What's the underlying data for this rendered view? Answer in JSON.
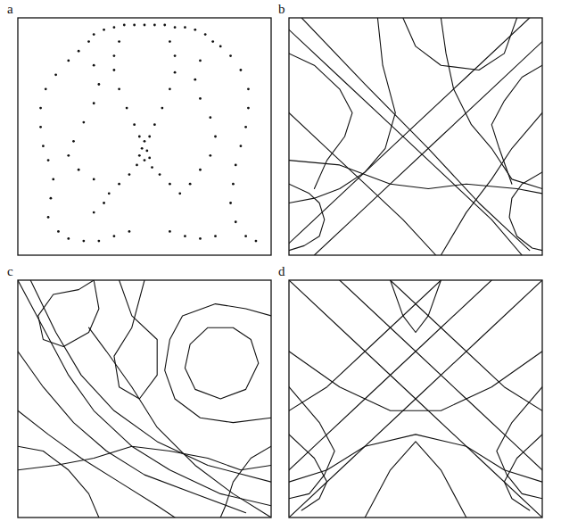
{
  "chart_data": [
    {
      "type": "scatter",
      "title": "a",
      "xlim": [
        0,
        100
      ],
      "ylim": [
        0,
        100
      ],
      "tick_labels": false,
      "color": "#111111",
      "marker": "dot",
      "x": [
        30,
        34,
        38,
        42,
        46,
        50,
        54,
        58,
        62,
        66,
        70,
        74,
        77,
        40,
        38,
        38,
        40,
        43,
        46,
        48,
        60,
        62,
        62,
        60,
        57,
        54,
        52,
        50,
        49,
        51,
        48,
        52,
        50,
        47,
        53,
        44,
        40,
        36,
        56,
        60,
        64,
        28,
        24,
        20,
        15,
        11,
        9,
        9,
        10,
        12,
        14,
        13,
        12,
        16,
        20,
        26,
        32,
        38,
        44,
        34,
        30,
        30,
        32,
        30,
        26,
        22,
        20,
        24,
        30,
        80,
        84,
        88,
        91,
        91,
        90,
        88,
        86,
        85,
        84,
        86,
        90,
        94,
        78,
        72,
        66,
        60,
        72,
        70,
        72,
        76,
        78,
        76,
        72,
        68
      ],
      "values": [
        93,
        95,
        96,
        97,
        97,
        97,
        97,
        97,
        96,
        96,
        95,
        93,
        90,
        90,
        84,
        78,
        70,
        62,
        55,
        50,
        90,
        84,
        77,
        70,
        62,
        55,
        50,
        48,
        45,
        44,
        42,
        41,
        40,
        38,
        37,
        34,
        30,
        26,
        34,
        30,
        26,
        90,
        86,
        82,
        76,
        70,
        62,
        54,
        46,
        40,
        32,
        24,
        16,
        10,
        7,
        6,
        6,
        8,
        10,
        22,
        18,
        80,
        72,
        64,
        56,
        48,
        42,
        36,
        32,
        88,
        84,
        78,
        70,
        62,
        54,
        46,
        38,
        30,
        22,
        14,
        8,
        6,
        8,
        7,
        8,
        10,
        82,
        74,
        66,
        58,
        50,
        42,
        36,
        30
      ]
    },
    {
      "type": "line",
      "title": "b",
      "xlim": [
        0,
        100
      ],
      "ylim": [
        0,
        100
      ],
      "tick_labels": false,
      "color": "#111111",
      "series": [
        {
          "x": [
            0,
            20,
            40,
            60,
            80,
            92
          ],
          "values": [
            95,
            75,
            55,
            35,
            15,
            0
          ]
        },
        {
          "x": [
            5,
            30,
            55,
            75,
            95
          ],
          "values": [
            100,
            72,
            45,
            22,
            2
          ]
        },
        {
          "x": [
            0,
            15,
            30,
            45,
            58
          ],
          "values": [
            60,
            45,
            30,
            15,
            0
          ]
        },
        {
          "x": [
            100,
            80,
            60,
            40,
            22,
            10
          ],
          "values": [
            90,
            70,
            50,
            30,
            12,
            0
          ]
        },
        {
          "x": [
            95,
            70,
            50,
            30,
            10,
            0
          ],
          "values": [
            100,
            75,
            55,
            35,
            15,
            5
          ]
        },
        {
          "x": [
            100,
            88,
            80,
            70,
            60
          ],
          "values": [
            60,
            45,
            32,
            18,
            0
          ]
        },
        {
          "x": [
            35,
            37,
            42,
            38,
            30,
            20,
            10,
            0
          ],
          "values": [
            100,
            80,
            60,
            45,
            35,
            28,
            24,
            22
          ]
        },
        {
          "x": [
            60,
            62,
            65,
            72,
            80,
            88,
            100
          ],
          "values": [
            100,
            85,
            70,
            55,
            45,
            32,
            28
          ]
        },
        {
          "x": [
            0,
            8,
            12,
            14,
            12,
            6,
            0
          ],
          "values": [
            30,
            26,
            22,
            15,
            8,
            4,
            2
          ]
        },
        {
          "x": [
            100,
            92,
            88,
            87,
            90,
            96,
            100
          ],
          "values": [
            35,
            30,
            24,
            16,
            8,
            3,
            2
          ]
        },
        {
          "x": [
            0,
            10,
            20,
            25,
            22,
            15,
            10
          ],
          "values": [
            85,
            80,
            70,
            60,
            50,
            40,
            28
          ]
        },
        {
          "x": [
            100,
            92,
            85,
            80,
            83,
            88
          ],
          "values": [
            80,
            75,
            65,
            55,
            45,
            30
          ]
        },
        {
          "x": [
            45,
            50,
            60,
            75,
            85,
            90
          ],
          "values": [
            100,
            88,
            80,
            78,
            85,
            100
          ]
        },
        {
          "x": [
            0,
            20,
            40,
            55,
            70,
            90,
            100
          ],
          "values": [
            40,
            38,
            30,
            28,
            30,
            28,
            26
          ]
        }
      ]
    },
    {
      "type": "line",
      "title": "c",
      "xlim": [
        0,
        100
      ],
      "ylim": [
        0,
        100
      ],
      "tick_labels": false,
      "color": "#111111",
      "series": [
        {
          "x": [
            0,
            10,
            20,
            30,
            45,
            60,
            80,
            100
          ],
          "values": [
            100,
            80,
            60,
            45,
            30,
            20,
            10,
            5
          ]
        },
        {
          "x": [
            5,
            15,
            25,
            38,
            55,
            75,
            100
          ],
          "values": [
            100,
            78,
            60,
            45,
            32,
            22,
            15
          ]
        },
        {
          "x": [
            0,
            10,
            22,
            35,
            50,
            70,
            90
          ],
          "values": [
            70,
            55,
            40,
            28,
            18,
            10,
            2
          ]
        },
        {
          "x": [
            0,
            12,
            25,
            40,
            55,
            62
          ],
          "values": [
            45,
            35,
            25,
            15,
            5,
            0
          ]
        },
        {
          "x": [
            30,
            32,
            28,
            18,
            10,
            8,
            14,
            24,
            30
          ],
          "values": [
            100,
            88,
            78,
            72,
            75,
            85,
            94,
            96,
            100
          ]
        },
        {
          "x": [
            95,
            92,
            85,
            75,
            68,
            66,
            70,
            80,
            90,
            95
          ],
          "values": [
            65,
            75,
            80,
            80,
            73,
            63,
            54,
            50,
            54,
            65
          ]
        },
        {
          "x": [
            100,
            90,
            78,
            65,
            60,
            58,
            62,
            72,
            85,
            100
          ],
          "values": [
            85,
            88,
            90,
            85,
            75,
            62,
            50,
            42,
            40,
            42
          ]
        },
        {
          "x": [
            40,
            45,
            55,
            55,
            48,
            40,
            38,
            45,
            50
          ],
          "values": [
            100,
            85,
            75,
            60,
            50,
            55,
            68,
            80,
            100
          ]
        },
        {
          "x": [
            0,
            15,
            30,
            45,
            60,
            75,
            88,
            100
          ],
          "values": [
            20,
            22,
            25,
            30,
            28,
            25,
            20,
            22
          ]
        },
        {
          "x": [
            100,
            85,
            70,
            55,
            45,
            35,
            28
          ],
          "values": [
            0,
            10,
            22,
            38,
            55,
            70,
            80
          ]
        },
        {
          "x": [
            0,
            10,
            20,
            28,
            32
          ],
          "values": [
            30,
            28,
            20,
            10,
            0
          ]
        },
        {
          "x": [
            100,
            92,
            85,
            82,
            80
          ],
          "values": [
            30,
            25,
            15,
            5,
            0
          ]
        }
      ]
    },
    {
      "type": "line",
      "title": "d",
      "xlim": [
        0,
        100
      ],
      "ylim": [
        0,
        100
      ],
      "tick_labels": false,
      "color": "#111111",
      "series": [
        {
          "x": [
            0,
            25,
            50,
            75,
            100
          ],
          "values": [
            100,
            75,
            50,
            25,
            0
          ]
        },
        {
          "x": [
            100,
            75,
            50,
            25,
            0
          ],
          "values": [
            100,
            75,
            50,
            25,
            0
          ]
        },
        {
          "x": [
            20,
            45,
            70,
            90,
            100
          ],
          "values": [
            100,
            75,
            50,
            30,
            20
          ]
        },
        {
          "x": [
            80,
            55,
            30,
            10,
            0
          ],
          "values": [
            100,
            75,
            50,
            30,
            20
          ]
        },
        {
          "x": [
            0,
            20,
            40,
            60,
            80,
            100
          ],
          "values": [
            70,
            55,
            45,
            45,
            55,
            70
          ]
        },
        {
          "x": [
            0,
            10,
            15,
            12,
            5
          ],
          "values": [
            35,
            25,
            15,
            8,
            3
          ]
        },
        {
          "x": [
            100,
            90,
            85,
            88,
            95
          ],
          "values": [
            35,
            25,
            15,
            8,
            3
          ]
        },
        {
          "x": [
            0,
            15,
            30,
            50,
            70,
            85,
            100
          ],
          "values": [
            15,
            20,
            30,
            35,
            30,
            20,
            15
          ]
        },
        {
          "x": [
            40,
            45,
            50,
            55,
            60
          ],
          "values": [
            100,
            85,
            78,
            85,
            100
          ]
        },
        {
          "x": [
            0,
            12,
            18,
            14,
            8,
            0
          ],
          "values": [
            55,
            40,
            28,
            18,
            10,
            8
          ]
        },
        {
          "x": [
            100,
            88,
            82,
            86,
            92,
            100
          ],
          "values": [
            55,
            40,
            28,
            18,
            10,
            8
          ]
        },
        {
          "x": [
            30,
            40,
            50,
            60,
            70
          ],
          "values": [
            0,
            20,
            32,
            20,
            0
          ]
        },
        {
          "x": [
            60,
            35,
            15,
            0
          ],
          "values": [
            100,
            75,
            55,
            45
          ]
        },
        {
          "x": [
            40,
            65,
            85,
            100
          ],
          "values": [
            100,
            75,
            55,
            45
          ]
        }
      ]
    }
  ]
}
